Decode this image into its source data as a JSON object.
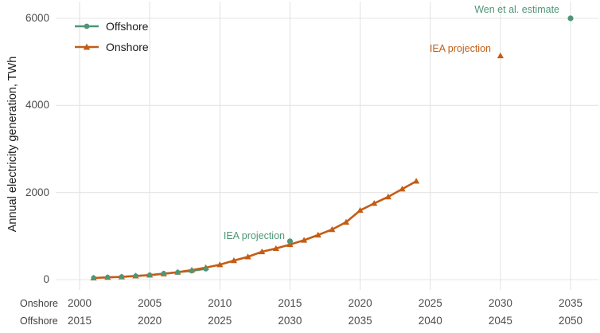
{
  "figure": {
    "kind": "wind-generation-projection-chart"
  },
  "colors": {
    "offshore_green": "#4e9678",
    "onshore_orange": "#c35d16",
    "grid": "#e4e4e4",
    "tick_text": "#4d4d4d",
    "axis_row_label_text": "#404040",
    "title_text": "#1a1a1a",
    "background": "#ffffff"
  },
  "chart_data": {
    "type": "line",
    "title": "",
    "xlabel": "",
    "ylabel": "Annual electricity generation, TWh",
    "ylim": [
      0,
      6000
    ],
    "y_ticks": [
      0,
      2000,
      4000,
      6000
    ],
    "grid": true,
    "legend_position": "top-left",
    "x_axis": {
      "row_labels": [
        "Onshore",
        "Offshore"
      ],
      "onshore_ticks": [
        2000,
        2005,
        2010,
        2015,
        2020,
        2025,
        2030,
        2035
      ],
      "offshore_ticks": [
        2015,
        2020,
        2025,
        2030,
        2035,
        2040,
        2045,
        2050
      ],
      "offshore_year_offset": -15,
      "note": "Offshore series is plotted shifted 15 years earlier so both axes share positions"
    },
    "series": [
      {
        "name": "Offshore",
        "color": "#4e9678",
        "marker": "circle",
        "years": [
          2016,
          2017,
          2018,
          2019,
          2020,
          2021,
          2022,
          2023,
          2024
        ],
        "values": [
          41,
          55,
          68,
          85,
          107,
          142,
          168,
          200,
          245
        ]
      },
      {
        "name": "Onshore",
        "color": "#c35d16",
        "marker": "triangle",
        "years": [
          2001,
          2002,
          2003,
          2004,
          2005,
          2006,
          2007,
          2008,
          2009,
          2010,
          2011,
          2012,
          2013,
          2014,
          2015,
          2016,
          2017,
          2018,
          2019,
          2020,
          2021,
          2022,
          2023,
          2024
        ],
        "values": [
          38,
          52,
          63,
          85,
          104,
          133,
          170,
          219,
          276,
          342,
          437,
          524,
          640,
          715,
          805,
          905,
          1025,
          1150,
          1320,
          1590,
          1750,
          1900,
          2080,
          2260
        ]
      }
    ],
    "projections": [
      {
        "series": "Offshore",
        "label": "IEA projection",
        "year": 2030,
        "value": 880
      },
      {
        "series": "Onshore",
        "label": "IEA projection",
        "year": 2030,
        "value": 5140
      },
      {
        "series": "Offshore",
        "label": "Wen et al. estimate",
        "year": 2050,
        "value": 6000
      }
    ]
  }
}
